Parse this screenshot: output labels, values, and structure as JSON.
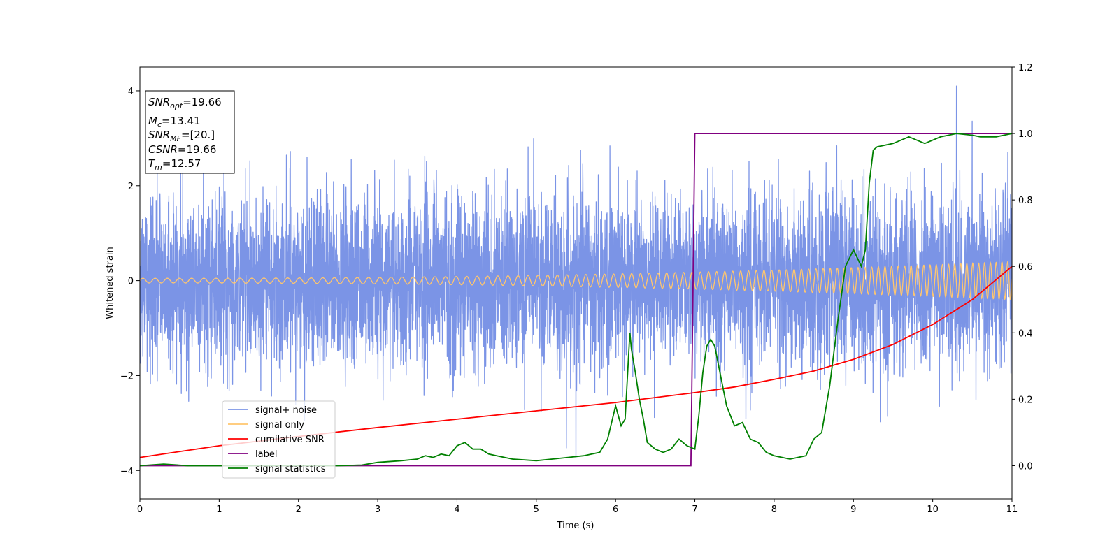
{
  "chart_data": {
    "type": "line",
    "xlabel": "Time (s)",
    "ylabel": "Whitened strain",
    "xlim": [
      0,
      11
    ],
    "ylim": [
      -4.6,
      4.5
    ],
    "ylim_right": [
      -0.1,
      1.2
    ],
    "xticks": [
      "0",
      "1",
      "2",
      "3",
      "4",
      "5",
      "6",
      "7",
      "8",
      "9",
      "10",
      "11"
    ],
    "yticks_left": [
      "−4",
      "−2",
      "0",
      "2",
      "4"
    ],
    "yticks_right": [
      "0.0",
      "0.2",
      "0.4",
      "0.6",
      "0.8",
      "1.0",
      "1.2"
    ],
    "legend_placement": "lower-left",
    "grid": false,
    "info_box": {
      "snr_opt": {
        "base": "SNR",
        "sub": "opt",
        "value": "=19.66"
      },
      "mc": {
        "base": "M",
        "sub": "c",
        "value": "=13.41"
      },
      "snr_mf": {
        "base": "SNR",
        "sub": "MF",
        "value": "=[20.]"
      },
      "csnr": {
        "base": "CSNR",
        "value": "=19.66"
      },
      "tm": {
        "base": "T",
        "sub": "m",
        "value": "=12.57"
      }
    },
    "series": [
      {
        "name": "signal+ noise",
        "axis": "left",
        "color": "#7b94e6",
        "description_only": "whitened noisy strain, roughly ±2.5 amplitude, peak ≈4.1 near t=10.3"
      },
      {
        "name": "signal only",
        "axis": "left",
        "color": "#ffc66e",
        "amplitude_start": 0.05,
        "amplitude_end": 0.4,
        "freq_start_hz": 6.5,
        "freq_end_hz": 14
      },
      {
        "name": "cumilative SNR",
        "axis": "right",
        "color": "#ff0000",
        "x": [
          0,
          1,
          2,
          3,
          4,
          5,
          6,
          7,
          7.5,
          8,
          8.5,
          9,
          9.5,
          10,
          10.5,
          11
        ],
        "values": [
          0.025,
          0.06,
          0.088,
          0.115,
          0.14,
          0.165,
          0.19,
          0.22,
          0.237,
          0.26,
          0.285,
          0.32,
          0.365,
          0.425,
          0.5,
          0.6
        ]
      },
      {
        "name": "label",
        "axis": "right",
        "color": "#800080",
        "x": [
          0,
          6.95,
          7.0,
          11
        ],
        "values": [
          0,
          0,
          1,
          1
        ]
      },
      {
        "name": "signal statistics",
        "axis": "right",
        "color": "#008000",
        "x": [
          0,
          0.3,
          0.6,
          1,
          1.5,
          2,
          2.5,
          2.8,
          3,
          3.3,
          3.5,
          3.6,
          3.7,
          3.8,
          3.9,
          4.0,
          4.1,
          4.2,
          4.3,
          4.4,
          4.5,
          4.7,
          5.0,
          5.2,
          5.4,
          5.6,
          5.7,
          5.8,
          5.9,
          6.0,
          6.07,
          6.12,
          6.18,
          6.2,
          6.25,
          6.3,
          6.35,
          6.4,
          6.5,
          6.6,
          6.7,
          6.8,
          6.9,
          7.0,
          7.05,
          7.1,
          7.15,
          7.2,
          7.25,
          7.3,
          7.4,
          7.5,
          7.6,
          7.7,
          7.8,
          7.9,
          8.0,
          8.2,
          8.3,
          8.4,
          8.5,
          8.6,
          8.7,
          8.8,
          8.9,
          9.0,
          9.1,
          9.15,
          9.2,
          9.25,
          9.3,
          9.5,
          9.6,
          9.7,
          9.8,
          9.9,
          10.0,
          10.1,
          10.2,
          10.3,
          10.5,
          10.6,
          10.8,
          11
        ],
        "values": [
          0.0,
          0.005,
          0.0,
          0.0,
          0.0,
          0.0,
          0.0,
          0.002,
          0.01,
          0.015,
          0.02,
          0.03,
          0.025,
          0.035,
          0.03,
          0.06,
          0.07,
          0.05,
          0.05,
          0.035,
          0.03,
          0.02,
          0.015,
          0.02,
          0.025,
          0.03,
          0.035,
          0.04,
          0.08,
          0.18,
          0.12,
          0.14,
          0.4,
          0.35,
          0.28,
          0.2,
          0.14,
          0.07,
          0.05,
          0.04,
          0.05,
          0.08,
          0.06,
          0.05,
          0.15,
          0.28,
          0.36,
          0.38,
          0.36,
          0.3,
          0.18,
          0.12,
          0.13,
          0.08,
          0.07,
          0.04,
          0.03,
          0.02,
          0.025,
          0.03,
          0.08,
          0.1,
          0.24,
          0.43,
          0.6,
          0.65,
          0.6,
          0.65,
          0.85,
          0.95,
          0.96,
          0.97,
          0.98,
          0.99,
          0.98,
          0.97,
          0.98,
          0.99,
          0.995,
          1.0,
          0.995,
          0.99,
          0.99,
          1.0
        ]
      }
    ]
  }
}
